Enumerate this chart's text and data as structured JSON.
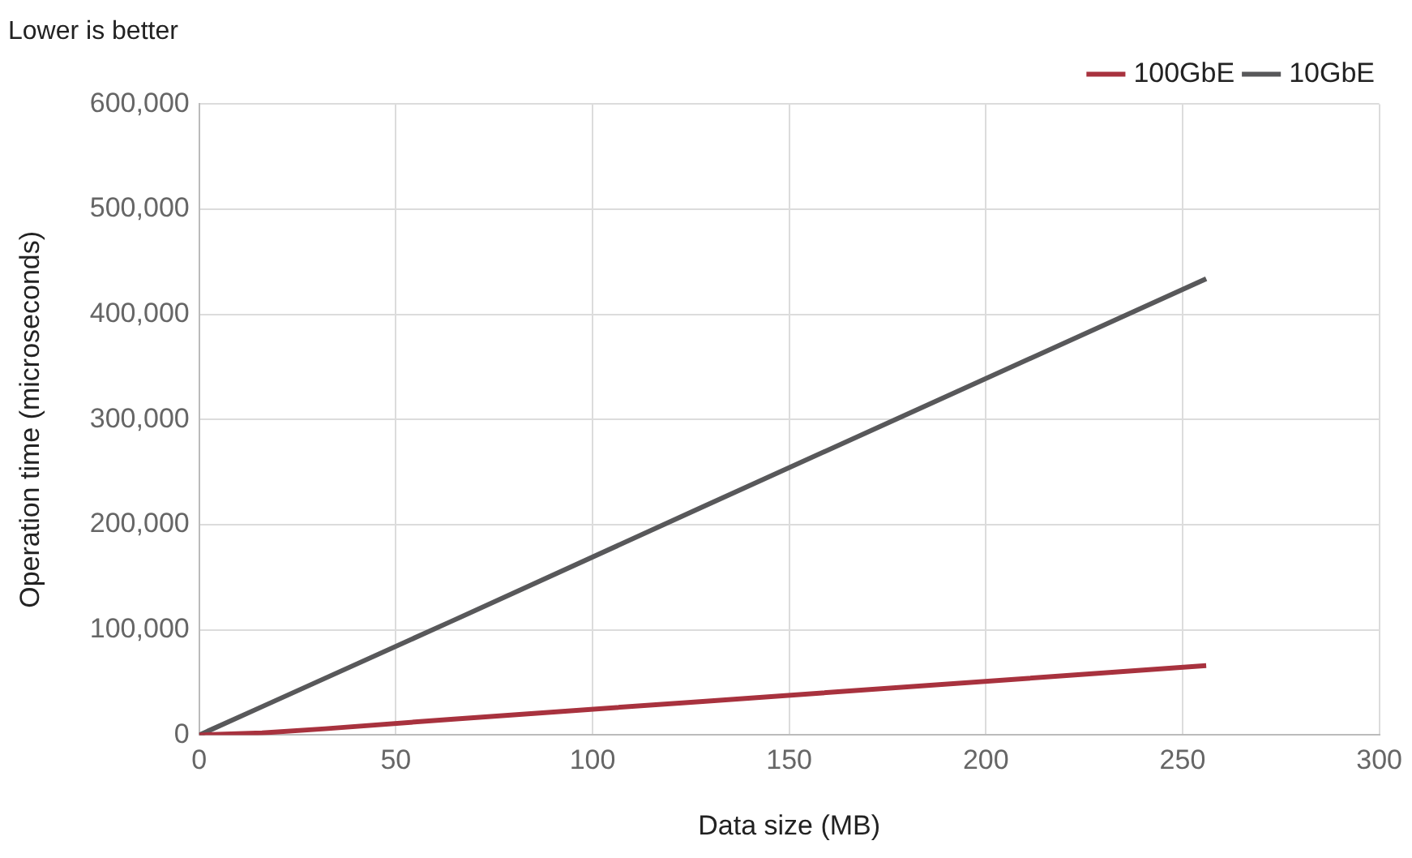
{
  "chart_data": {
    "type": "line",
    "title": "Lower is better",
    "xlabel": "Data size (MB)",
    "ylabel": "Operation time (microseconds)",
    "x": [
      0,
      16,
      32,
      64,
      128,
      256
    ],
    "series": [
      {
        "name": "100GbE",
        "color": "#a8323e",
        "values": [
          0,
          2000,
          6000,
          15000,
          32000,
          66000
        ]
      },
      {
        "name": "10GbE",
        "color": "#58585a",
        "values": [
          0,
          27000,
          54000,
          108000,
          217000,
          434000
        ]
      }
    ],
    "xlim": [
      0,
      300
    ],
    "xticks": [
      0,
      50,
      100,
      150,
      200,
      250,
      300
    ],
    "ylim": [
      0,
      600000
    ],
    "yticks": [
      0,
      {
        "value": 100000,
        "label": "100,000"
      },
      {
        "value": 200000,
        "label": "200,000"
      },
      {
        "value": 300000,
        "label": "300,000"
      },
      {
        "value": 400000,
        "label": "400,000"
      },
      {
        "value": 500000,
        "label": "500,000"
      },
      {
        "value": 600000,
        "label": "600,000"
      }
    ],
    "grid": true,
    "legend": "top right",
    "marker": "none",
    "line_style": "solid"
  }
}
